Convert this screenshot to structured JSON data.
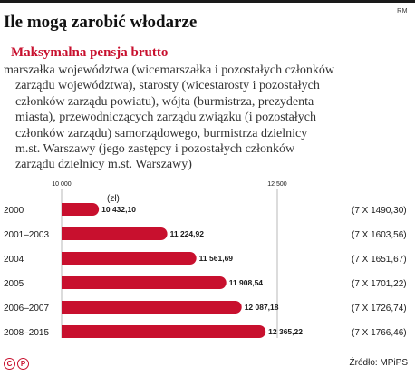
{
  "header": {
    "agency": "RM",
    "title": "Ile mogą zarobić włodarze",
    "subtitle": "Maksymalna pensja brutto",
    "description_lines": [
      "marszałka województwa (wicemarszałka i pozostałych członków",
      "zarządu województwa), starosty (wicestarosty i pozostałych",
      "członków zarządu powiatu), wójta (burmistrza, prezydenta",
      "miasta), przewodniczących zarządu związku (i pozostałych",
      "członków zarządu) samorządowego, burmistrza dzielnicy",
      "m.st. Warszawy (jego zastępcy i pozostałych członków",
      "zarządu dzielnicy m.st. Warszawy)"
    ]
  },
  "footer": {
    "source": "Źródło: MPiPS",
    "logo_letters": [
      "C",
      "P"
    ]
  },
  "colors": {
    "accent": "#c8102e",
    "text": "#1a1a1a"
  },
  "chart_data": {
    "type": "bar",
    "orientation": "horizontal",
    "unit_label": "(zł)",
    "xlim": [
      10000,
      12500
    ],
    "axis_ticks": [
      "10 000",
      "12 500"
    ],
    "categories": [
      "2000",
      "2001–2003",
      "2004",
      "2005",
      "2006–2007",
      "2008–2015"
    ],
    "values": [
      10432.1,
      11224.92,
      11561.69,
      11908.54,
      12087.18,
      12365.22
    ],
    "value_labels": [
      "10 432,10",
      "11 224,92",
      "11 561,69",
      "11 908,54",
      "12 087,18",
      "12 365,22"
    ],
    "annotations": [
      "(7 X 1490,30)",
      "(7 X 1603,56)",
      "(7 X 1651,67)",
      "(7 X 1701,22)",
      "(7 X 1726,74)",
      "(7 X 1766,46)"
    ],
    "grid": false,
    "legend": "none"
  }
}
